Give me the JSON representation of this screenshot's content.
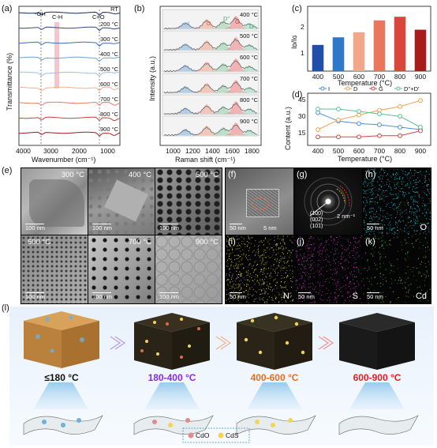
{
  "panels": {
    "a": {
      "label": "(a)",
      "ylabel": "Transmittance (%)",
      "xlabel": "Wavenumber (cm⁻¹)",
      "xticks": [
        "4000",
        "3000",
        "2000",
        "1000"
      ],
      "bands": [
        "-OH",
        "C-H",
        "C=O"
      ],
      "curves": [
        "RT",
        "200 °C",
        "300 °C",
        "400 °C",
        "500 °C",
        "600 °C",
        "700 °C",
        "800 °C",
        "900 °C"
      ],
      "colors": [
        "#1a2a57",
        "#2c4a8a",
        "#3b6db5",
        "#6c9fd6",
        "#9cc1e6",
        "#f0b090",
        "#e27a68",
        "#c8403a",
        "#9e1b1b"
      ]
    },
    "b": {
      "label": "(b)",
      "ylabel": "Intensity (a.u.)",
      "xlabel": "Raman shift (cm⁻¹)",
      "xticks": [
        "1000",
        "1200",
        "1400",
        "1600",
        "1800"
      ],
      "peaks": [
        "I",
        "D",
        "D''",
        "G",
        "D'"
      ],
      "temps": [
        "400 °C",
        "500 °C",
        "600 °C",
        "700 °C",
        "800 °C",
        "900 °C"
      ]
    },
    "c": {
      "label": "(c)",
      "ylabel": "Iᴅ/Iɢ",
      "xlabel": "Temperature (°C)",
      "yticks": [
        "1",
        "2"
      ]
    },
    "d": {
      "label": "(d)",
      "ylabel": "Content (a.u.)",
      "xlabel": "Temperature (°C)",
      "yticks": [
        "15",
        "30",
        "45"
      ],
      "legend": [
        "I",
        "D",
        "G",
        "D''+D'"
      ]
    },
    "e": {
      "label": "(e)",
      "tiles": [
        {
          "temp": "300 °C",
          "scale": "100 nm"
        },
        {
          "temp": "400 °C",
          "scale": "100 nm"
        },
        {
          "temp": "500 °C",
          "scale": "100 nm"
        },
        {
          "temp": "600 °C",
          "scale": "100 nm"
        },
        {
          "temp": "700 °C",
          "scale": "100 nm"
        },
        {
          "temp": "900 °C",
          "scale": "100 nm"
        }
      ]
    },
    "f": {
      "label": "(f)",
      "scale": "50 nm",
      "inset_scale": "5 nm"
    },
    "g": {
      "label": "(g)",
      "scale": "2 nm⁻¹",
      "rings": [
        "(100)",
        "(002)",
        "(101)"
      ]
    },
    "h": {
      "label": "(h)",
      "element": "O",
      "scale": "50 nm",
      "color": "#2fd0e0"
    },
    "i": {
      "label": "(i)",
      "element": "N",
      "scale": "50 nm",
      "color": "#e6e24a"
    },
    "j": {
      "label": "(j)",
      "element": "S",
      "scale": "50 nm",
      "color": "#e040d8"
    },
    "k": {
      "label": "(k)",
      "element": "Cd",
      "scale": "50 nm",
      "color": "#6de04a"
    },
    "l": {
      "label": "(l)",
      "stages": [
        {
          "text": "≤180 °C",
          "color": "#111111"
        },
        {
          "text": "180-400 °C",
          "color": "#8a2be2"
        },
        {
          "text": "400-600 °C",
          "color": "#e07020"
        },
        {
          "text": "600-900 °C",
          "color": "#e02020"
        }
      ],
      "legend": [
        "CdO",
        "CdS"
      ]
    }
  },
  "chart_data": [
    {
      "type": "bar",
      "panel": "c",
      "categories": [
        "400",
        "500",
        "600",
        "700",
        "800",
        "900"
      ],
      "values": [
        0.93,
        1.2,
        1.38,
        1.8,
        1.93,
        1.47
      ],
      "colors": [
        "#1f4fa8",
        "#2e78c9",
        "#f2a68a",
        "#e9775e",
        "#d9473a",
        "#a81c1c"
      ],
      "ylim": [
        0,
        2.3
      ],
      "xlabel": "Temperature (°C)",
      "ylabel": "Iᴅ/Iɢ"
    },
    {
      "type": "line",
      "panel": "d",
      "x": [
        400,
        500,
        600,
        700,
        800,
        900
      ],
      "series": [
        {
          "name": "I",
          "color": "#4a90d9",
          "values": [
            32,
            25,
            23,
            22,
            20,
            18
          ]
        },
        {
          "name": "D",
          "color": "#f0a050",
          "values": [
            18,
            26,
            30,
            34,
            37,
            42
          ]
        },
        {
          "name": "G",
          "color": "#d94040",
          "values": [
            12,
            12,
            12,
            13,
            13,
            17
          ]
        },
        {
          "name": "D''+D'",
          "color": "#5cc090",
          "values": [
            35,
            35,
            33,
            31,
            29,
            20
          ]
        }
      ],
      "ylim": [
        5,
        48
      ],
      "xlabel": "Temperature (°C)",
      "ylabel": "Content (a.u.)"
    }
  ]
}
